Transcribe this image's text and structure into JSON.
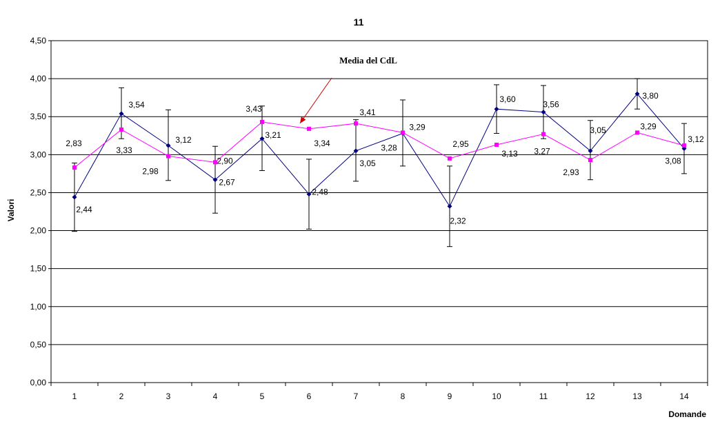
{
  "chart_data": {
    "type": "line",
    "title": "11",
    "xlabel": "Domande",
    "ylabel": "Valori",
    "categories": [
      "1",
      "2",
      "3",
      "4",
      "5",
      "6",
      "7",
      "8",
      "9",
      "10",
      "11",
      "12",
      "13",
      "14"
    ],
    "y_tick_labels": [
      "0,00",
      "0,50",
      "1,00",
      "1,50",
      "2,00",
      "2,50",
      "3,00",
      "3,50",
      "4,00",
      "4,50"
    ],
    "ylim": [
      0,
      4.5
    ],
    "grid": true,
    "legend": "none",
    "series": [
      {
        "color": "#000080",
        "marker": "diamond",
        "values": [
          2.44,
          3.54,
          3.12,
          2.67,
          3.21,
          2.48,
          3.05,
          3.28,
          2.32,
          3.6,
          3.56,
          3.05,
          3.8,
          3.08
        ],
        "value_labels": [
          "2,44",
          "3,54",
          "3,12",
          "2,67",
          "3,21",
          "2,48",
          "3,05",
          "3,28",
          "2,32",
          "3,60",
          "3,56",
          "3,05",
          "3,80",
          "3,08"
        ],
        "error_low": [
          1.99,
          3.21,
          2.66,
          2.23,
          2.79,
          2.02,
          2.65,
          2.85,
          1.79,
          3.28,
          3.21,
          2.67,
          3.6,
          2.75
        ],
        "error_high": [
          2.89,
          3.88,
          3.59,
          3.11,
          3.64,
          2.94,
          3.46,
          3.72,
          2.85,
          3.92,
          3.91,
          3.45,
          4.0,
          3.41
        ]
      },
      {
        "color": "#ff00ff",
        "marker": "square",
        "values": [
          2.83,
          3.33,
          2.98,
          2.9,
          3.43,
          3.34,
          3.41,
          3.29,
          2.95,
          3.13,
          3.27,
          2.93,
          3.29,
          3.12
        ],
        "value_labels": [
          "2,83",
          "3,33",
          "2,98",
          "2,90",
          "3,43",
          "3,34",
          "3,41",
          "3,29",
          "2,95",
          "3,13",
          "3,27",
          "2,93",
          "3,29",
          "3,12"
        ]
      }
    ],
    "annotations": [
      {
        "text": "Media del CdL",
        "points_to_category": "6",
        "points_to_series": 1,
        "arrow_color": "#cc0000"
      }
    ]
  }
}
